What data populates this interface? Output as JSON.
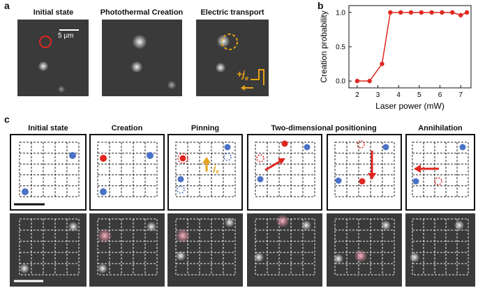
{
  "panel_a": {
    "letter": "a",
    "titles": [
      "Initial state",
      "Photothermal Creation",
      "Electric transport"
    ],
    "scalebar_label": "5 μm",
    "current_label": "+j",
    "current_sub": "e"
  },
  "panel_b": {
    "letter": "b",
    "chart_data": {
      "type": "line",
      "xlabel": "Laser power (mW)",
      "ylabel": "Creation probability",
      "x": [
        2.0,
        2.6,
        3.2,
        3.6,
        4.1,
        4.6,
        5.1,
        5.6,
        6.1,
        6.6,
        7.0,
        7.3
      ],
      "values": [
        0.0,
        0.0,
        0.25,
        1.0,
        1.0,
        1.0,
        1.0,
        1.0,
        1.0,
        1.0,
        0.96,
        1.0
      ],
      "xlim": [
        1.6,
        7.5
      ],
      "ylim": [
        -0.1,
        1.1
      ],
      "xticks": [
        "2",
        "3",
        "4",
        "5",
        "6",
        "7"
      ],
      "yticks": [
        "0.0",
        "0.5",
        "1.0"
      ],
      "color": "#e0261f"
    }
  },
  "panel_c": {
    "letter": "c",
    "titles": [
      "Initial state",
      "Creation",
      "Pinning",
      "Two-dimensional positioning",
      "Annihilation"
    ],
    "current_label": "j",
    "current_sub": "e"
  },
  "colors": {
    "blue": "#4a73c7",
    "red": "#e0261f",
    "gold": "#e8a317"
  }
}
